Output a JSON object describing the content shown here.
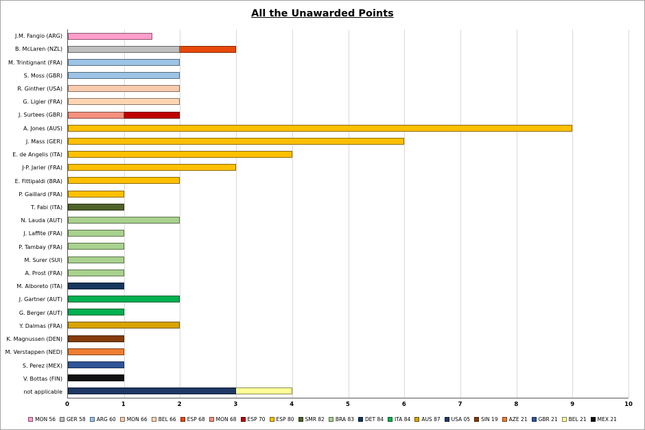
{
  "chart_data": {
    "type": "bar",
    "orientation": "horizontal",
    "title": "All the Unawarded Points",
    "xlabel": "",
    "ylabel": "",
    "xlim": [
      0,
      10
    ],
    "x_ticks": [
      0,
      1,
      2,
      3,
      4,
      5,
      6,
      7,
      8,
      9,
      10
    ],
    "grid": true,
    "legend_position": "bottom",
    "series": [
      {
        "name": "MON 56",
        "color": "#FF9ECB"
      },
      {
        "name": "GER 58",
        "color": "#BFBFBF"
      },
      {
        "name": "ARG 60",
        "color": "#9DC3E6"
      },
      {
        "name": "MON 66",
        "color": "#F8CBAD"
      },
      {
        "name": "BEL 66",
        "color": "#FCD5B4"
      },
      {
        "name": "ESP 68",
        "color": "#E8490B"
      },
      {
        "name": "MON 68",
        "color": "#F4907E"
      },
      {
        "name": "ESP 70",
        "color": "#C00000"
      },
      {
        "name": "ESP 80",
        "color": "#FFC000"
      },
      {
        "name": "SMR 82",
        "color": "#4F6228"
      },
      {
        "name": "BRA 83",
        "color": "#A9D18E"
      },
      {
        "name": "DET 84",
        "color": "#17375E"
      },
      {
        "name": "ITA 84",
        "color": "#00B050"
      },
      {
        "name": "AUS 87",
        "color": "#D9A300"
      },
      {
        "name": "USA 05",
        "color": "#1F3864"
      },
      {
        "name": "SIN 19",
        "color": "#843C0C"
      },
      {
        "name": "AZE 21",
        "color": "#ED7D31"
      },
      {
        "name": "GBR 21",
        "color": "#2F5597"
      },
      {
        "name": "BEL 21",
        "color": "#FFFF99"
      },
      {
        "name": "MEX 21",
        "color": "#111111"
      }
    ],
    "rows": [
      {
        "label": "J.M. Fangio (ARG)",
        "segments": [
          {
            "series": "MON 56",
            "value": 1.5
          }
        ]
      },
      {
        "label": "B. McLaren (NZL)",
        "segments": [
          {
            "series": "GER 58",
            "value": 2
          },
          {
            "series": "ESP 68",
            "value": 1
          }
        ]
      },
      {
        "label": "M. Trintignant (FRA)",
        "segments": [
          {
            "series": "ARG 60",
            "value": 2
          }
        ]
      },
      {
        "label": "S. Moss (GBR)",
        "segments": [
          {
            "series": "ARG 60",
            "value": 2
          }
        ]
      },
      {
        "label": "R. Ginther (USA)",
        "segments": [
          {
            "series": "MON 66",
            "value": 2
          }
        ]
      },
      {
        "label": "G. Ligier (FRA)",
        "segments": [
          {
            "series": "BEL 66",
            "value": 2
          }
        ]
      },
      {
        "label": "J. Surtees (GBR)",
        "segments": [
          {
            "series": "MON 68",
            "value": 1
          },
          {
            "series": "ESP 70",
            "value": 1
          }
        ]
      },
      {
        "label": "A. Jones (AUS)",
        "segments": [
          {
            "series": "ESP 80",
            "value": 9
          }
        ]
      },
      {
        "label": "J. Mass (GER)",
        "segments": [
          {
            "series": "ESP 80",
            "value": 6
          }
        ]
      },
      {
        "label": "E. de Angelis (ITA)",
        "segments": [
          {
            "series": "ESP 80",
            "value": 4
          }
        ]
      },
      {
        "label": "J-P. Jarier (FRA)",
        "segments": [
          {
            "series": "ESP 80",
            "value": 3
          }
        ]
      },
      {
        "label": "E. Fittipaldi (BRA)",
        "segments": [
          {
            "series": "ESP 80",
            "value": 2
          }
        ]
      },
      {
        "label": "P. Gaillard (FRA)",
        "segments": [
          {
            "series": "ESP 80",
            "value": 1
          }
        ]
      },
      {
        "label": "T. Fabi (ITA)",
        "segments": [
          {
            "series": "SMR 82",
            "value": 1
          }
        ]
      },
      {
        "label": "N. Lauda (AUT)",
        "segments": [
          {
            "series": "BRA 83",
            "value": 2
          }
        ]
      },
      {
        "label": "J. Laffite (FRA)",
        "segments": [
          {
            "series": "BRA 83",
            "value": 1
          }
        ]
      },
      {
        "label": "P. Tambay (FRA)",
        "segments": [
          {
            "series": "BRA 83",
            "value": 1
          }
        ]
      },
      {
        "label": "M. Surer (SUI)",
        "segments": [
          {
            "series": "BRA 83",
            "value": 1
          }
        ]
      },
      {
        "label": "A. Prost (FRA)",
        "segments": [
          {
            "series": "BRA 83",
            "value": 1
          }
        ]
      },
      {
        "label": "M. Alboreto (ITA)",
        "segments": [
          {
            "series": "DET 84",
            "value": 1
          }
        ]
      },
      {
        "label": "J. Gartner (AUT)",
        "segments": [
          {
            "series": "ITA 84",
            "value": 2
          }
        ]
      },
      {
        "label": "G. Berger (AUT)",
        "segments": [
          {
            "series": "ITA 84",
            "value": 1
          }
        ]
      },
      {
        "label": "Y. Dalmas (FRA)",
        "segments": [
          {
            "series": "AUS 87",
            "value": 2
          }
        ]
      },
      {
        "label": "K. Magnussen (DEN)",
        "segments": [
          {
            "series": "SIN 19",
            "value": 1
          }
        ]
      },
      {
        "label": "M. Verstappen (NED)",
        "segments": [
          {
            "series": "AZE 21",
            "value": 1
          }
        ]
      },
      {
        "label": "S. Perez (MEX)",
        "segments": [
          {
            "series": "GBR 21",
            "value": 1
          }
        ]
      },
      {
        "label": "V. Bottas (FIN)",
        "segments": [
          {
            "series": "MEX 21",
            "value": 1
          }
        ]
      },
      {
        "label": "not applicable",
        "segments": [
          {
            "series": "USA 05",
            "value": 3
          },
          {
            "series": "BEL 21",
            "value": 1
          }
        ]
      }
    ]
  }
}
